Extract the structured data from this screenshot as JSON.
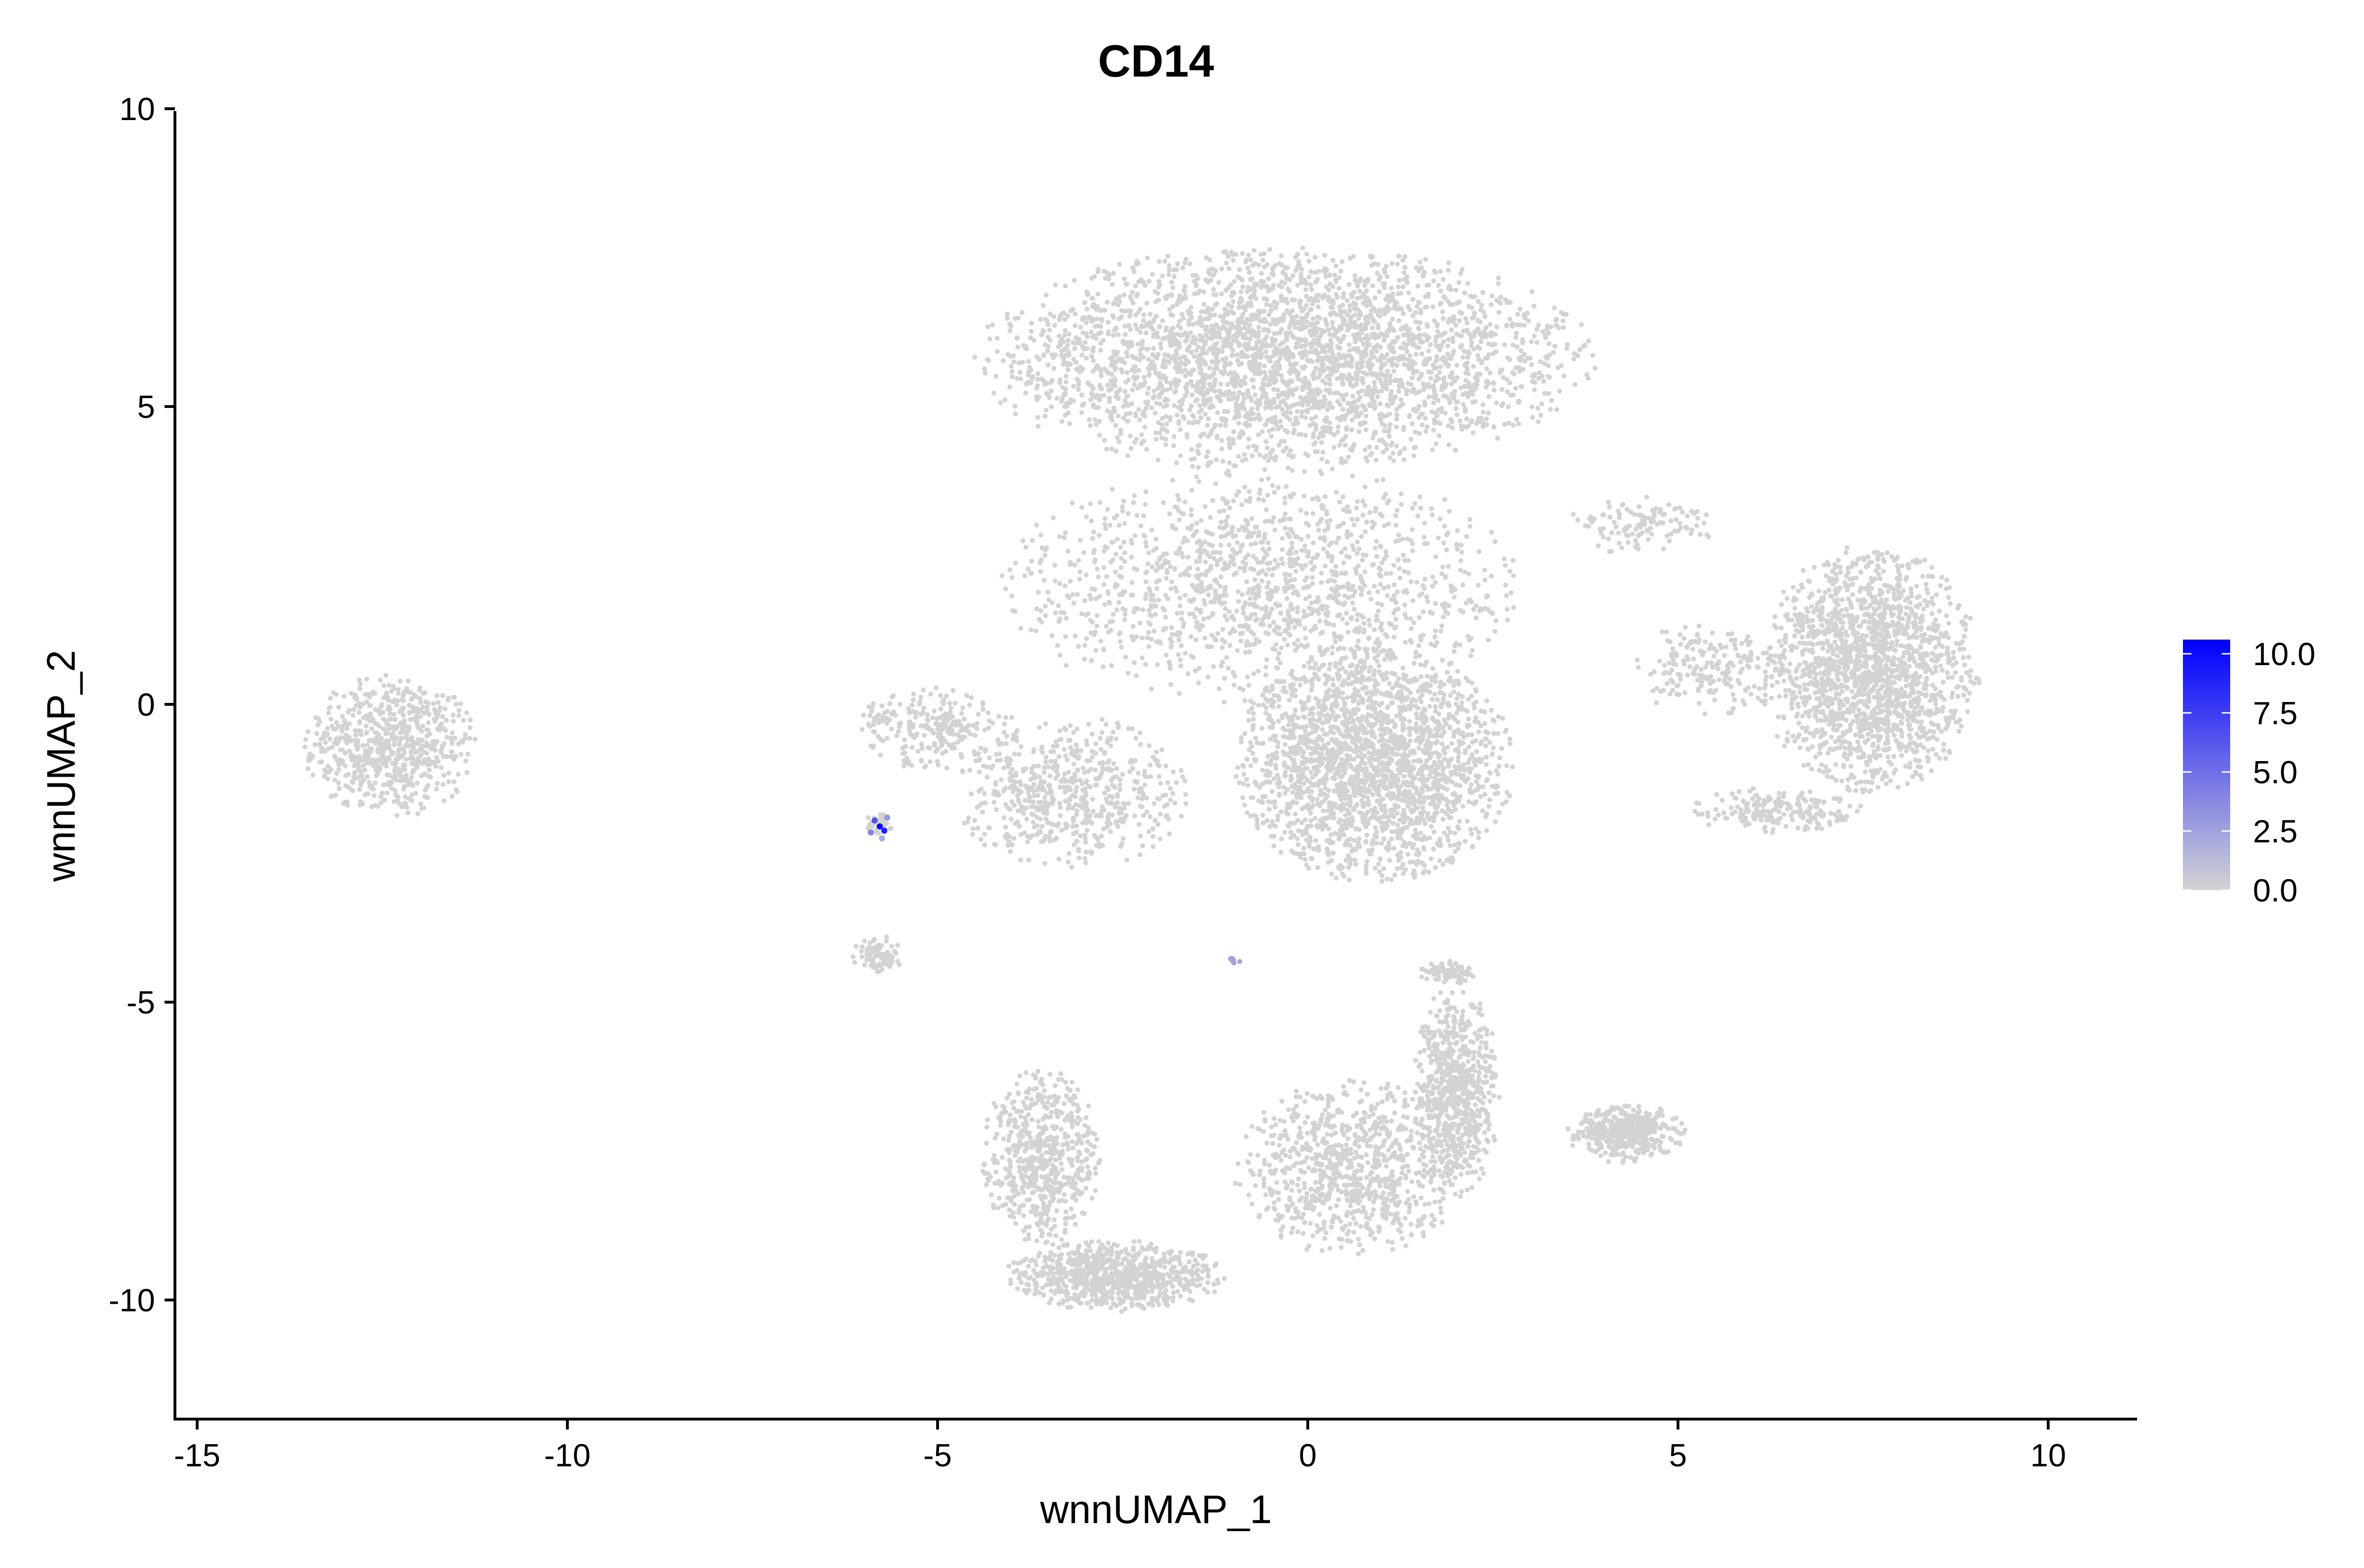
{
  "chart_data": {
    "type": "scatter",
    "title": "CD14",
    "xlabel": "wnnUMAP_1",
    "ylabel": "wnnUMAP_2",
    "xlim": [
      -15.3,
      11.2
    ],
    "ylim": [
      -12,
      10
    ],
    "x_ticks": [
      -15,
      -10,
      -5,
      0,
      5,
      10
    ],
    "y_ticks": [
      -10,
      -5,
      0,
      5,
      10
    ],
    "x_tick_labels": [
      "-15",
      "-10",
      "-5",
      "0",
      "5",
      "10"
    ],
    "y_tick_labels": [
      "-10",
      "-5",
      "0",
      "5",
      "10"
    ],
    "grid": false,
    "legend": {
      "placement": "right",
      "type": "continuous-colorbar",
      "min": 0,
      "max": 10.6,
      "ticks": [
        0,
        2.5,
        5,
        7.5,
        10
      ],
      "tick_labels": [
        "0.0",
        "2.5",
        "5.0",
        "7.5",
        "10.0"
      ],
      "low_color": "#d3d3d3",
      "high_color": "#0000ff"
    },
    "colors": {
      "low": "#d3d3d3",
      "high": "#0000ff"
    },
    "series": [
      {
        "clusters": [
          {
            "cx": -12.4,
            "cy": -0.7,
            "rx": 1.2,
            "ry": 1.2,
            "n": 700,
            "value": 0
          },
          {
            "cx": -0.3,
            "cy": 5.8,
            "rx": 4.2,
            "ry": 1.9,
            "n": 3200,
            "value": 0
          },
          {
            "cx": -0.6,
            "cy": 2.0,
            "rx": 3.6,
            "ry": 2.0,
            "n": 1400,
            "value": 0
          },
          {
            "cx": 0.9,
            "cy": -1.0,
            "rx": 1.9,
            "ry": 2.0,
            "n": 2200,
            "value": 0
          },
          {
            "cx": -3.2,
            "cy": -1.5,
            "rx": 1.6,
            "ry": 1.3,
            "n": 600,
            "value": 0
          },
          {
            "cx": -5.0,
            "cy": -0.4,
            "rx": 1.1,
            "ry": 0.7,
            "n": 250,
            "value": 0
          },
          {
            "cx": -5.8,
            "cy": -4.2,
            "rx": 0.35,
            "ry": 0.35,
            "n": 80,
            "value": 0
          },
          {
            "cx": -5.8,
            "cy": -2.0,
            "rx": 0.2,
            "ry": 0.2,
            "n": 30,
            "value": 0
          },
          {
            "cx": 7.6,
            "cy": 0.6,
            "rx": 1.5,
            "ry": 2.1,
            "n": 1800,
            "value": 0
          },
          {
            "cx": 5.4,
            "cy": 0.6,
            "rx": 1.0,
            "ry": 0.8,
            "n": 200,
            "value": 0
          },
          {
            "cx": 6.3,
            "cy": -1.8,
            "rx": 1.2,
            "ry": 0.4,
            "n": 200,
            "value": 0
          },
          {
            "cx": 4.3,
            "cy": -7.2,
            "rx": 0.8,
            "ry": 0.5,
            "n": 420,
            "value": 0
          },
          {
            "cx": 2.0,
            "cy": -6.5,
            "rx": 0.6,
            "ry": 1.8,
            "n": 700,
            "value": 0
          },
          {
            "cx": -3.6,
            "cy": -7.6,
            "rx": 0.8,
            "ry": 1.5,
            "n": 600,
            "value": 0
          },
          {
            "cx": -2.6,
            "cy": -9.6,
            "rx": 1.5,
            "ry": 0.6,
            "n": 800,
            "value": 0
          },
          {
            "cx": 0.6,
            "cy": -7.8,
            "rx": 1.6,
            "ry": 1.5,
            "n": 900,
            "value": 0
          },
          {
            "cx": 1.9,
            "cy": -4.5,
            "rx": 0.4,
            "ry": 0.2,
            "n": 80,
            "value": 0
          },
          {
            "cx": 4.5,
            "cy": 3.0,
            "rx": 1.0,
            "ry": 0.5,
            "n": 120,
            "value": 0
          },
          {
            "cx": -1.0,
            "cy": -4.3,
            "rx": 0.1,
            "ry": 0.1,
            "n": 8,
            "value": 2.5
          }
        ],
        "highlight_points": [
          {
            "x": -5.78,
            "y": -2.05,
            "value": 10.5
          },
          {
            "x": -5.72,
            "y": -2.12,
            "value": 9.0
          },
          {
            "x": -5.85,
            "y": -1.95,
            "value": 6.5
          },
          {
            "x": -5.9,
            "y": -2.15,
            "value": 4.0
          },
          {
            "x": -5.68,
            "y": -1.9,
            "value": 3.0
          },
          {
            "x": -5.75,
            "y": -2.25,
            "value": 2.0
          }
        ]
      }
    ]
  }
}
